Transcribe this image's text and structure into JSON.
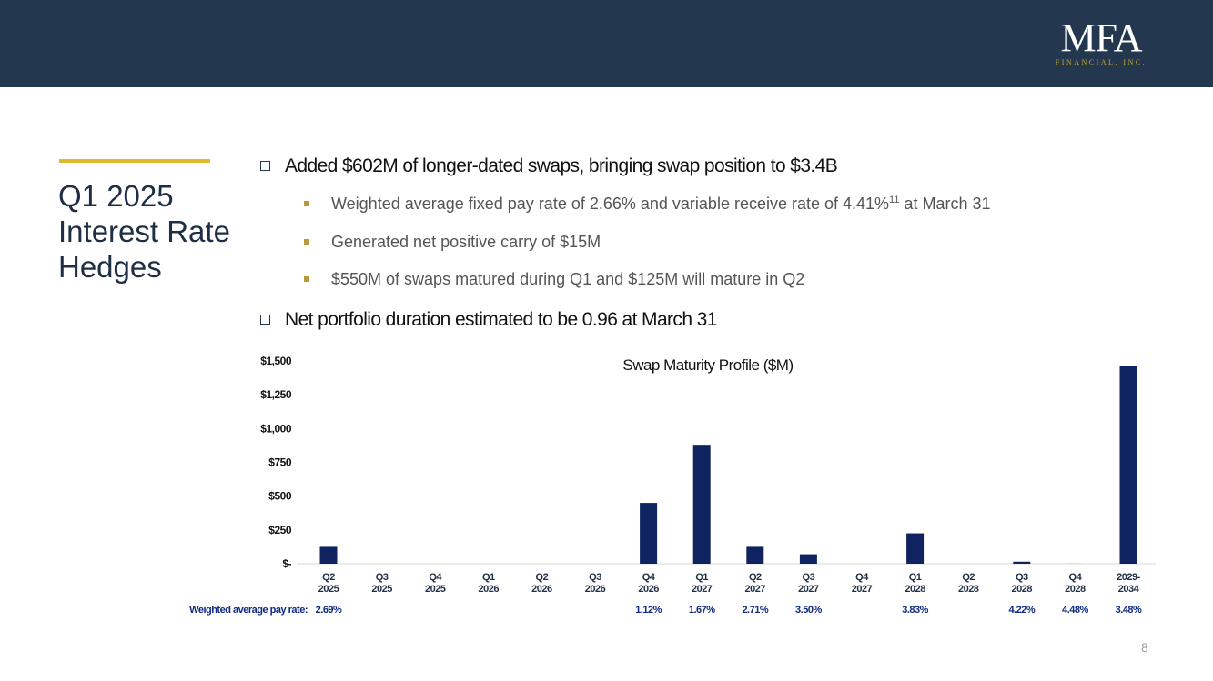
{
  "header": {
    "logo_main": "MFA",
    "logo_sub": "FINANCIAL, INC."
  },
  "title": "Q1 2025 Interest Rate Hedges",
  "title_lines": [
    "Q1 2025",
    "Interest Rate",
    "Hedges"
  ],
  "bullets": [
    {
      "text": "Added $602M of longer-dated swaps, bringing swap position to $3.4B"
    },
    {
      "sub": "Weighted average fixed pay rate of 2.66% and variable receive rate of 4.41%",
      "sup": "11",
      "tail": " at March 31"
    },
    {
      "sub": "Generated net positive carry of $15M"
    },
    {
      "sub": "$550M of swaps matured during Q1 and $125M will mature in Q2"
    },
    {
      "text": "Net portfolio duration estimated to be 0.96 at March 31"
    }
  ],
  "page_number": "8",
  "chart_data": {
    "type": "bar",
    "title": "Swap Maturity Profile ($M)",
    "categories": [
      [
        "Q2",
        "2025"
      ],
      [
        "Q3",
        "2025"
      ],
      [
        "Q4",
        "2025"
      ],
      [
        "Q1",
        "2026"
      ],
      [
        "Q2",
        "2026"
      ],
      [
        "Q3",
        "2026"
      ],
      [
        "Q4",
        "2026"
      ],
      [
        "Q1",
        "2027"
      ],
      [
        "Q2",
        "2027"
      ],
      [
        "Q3",
        "2027"
      ],
      [
        "Q4",
        "2027"
      ],
      [
        "Q1",
        "2028"
      ],
      [
        "Q2",
        "2028"
      ],
      [
        "Q3",
        "2028"
      ],
      [
        "Q4",
        "2028"
      ],
      [
        "2029-",
        "2034"
      ]
    ],
    "values": [
      125,
      0,
      0,
      0,
      0,
      0,
      450,
      880,
      125,
      70,
      0,
      225,
      0,
      15,
      5,
      1465
    ],
    "ylim": [
      0,
      1500
    ],
    "yticks": [
      0,
      250,
      500,
      750,
      1000,
      1250,
      1500
    ],
    "ytick_labels": [
      "$-",
      "$250",
      "$500",
      "$750",
      "$1,000",
      "$1,250",
      "$1,500"
    ],
    "rate_label": "Weighted average pay rate:",
    "rates": [
      "2.69%",
      "",
      "",
      "",
      "",
      "",
      "1.12%",
      "1.67%",
      "2.71%",
      "3.50%",
      "",
      "3.83%",
      "",
      "4.22%",
      "4.48%",
      "3.48%"
    ],
    "bar_color": "#0f2360",
    "grid": false
  }
}
